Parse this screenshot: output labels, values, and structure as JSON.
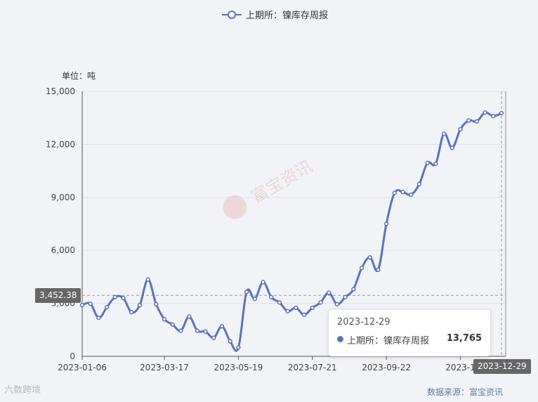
{
  "legend": {
    "label": "上期所：镍库存周报",
    "color": "#5b73bd"
  },
  "unit_label": "单位：吨",
  "tooltip": {
    "date": "2023-12-29",
    "series_name": "上期所：镍库存周报",
    "value": "13,765"
  },
  "crosshair": {
    "y_label": "3,452.38",
    "x_label": "2023-12-29",
    "y_value": 3452.38
  },
  "watermark": {
    "text": "富宝资讯"
  },
  "footer": {
    "source": "数据来源：富宝资讯",
    "brand": "六数跨境"
  },
  "chart_data": {
    "type": "line",
    "ylim": [
      0,
      15000
    ],
    "y_ticks": [
      0,
      3000,
      6000,
      9000,
      12000,
      15000
    ],
    "y_tick_labels": [
      "0",
      "3,000",
      "6,000",
      "9,000",
      "12,000",
      "15,000"
    ],
    "x_tick_labels": [
      "2023-01-06",
      "2023-03-17",
      "2023-05-19",
      "2023-07-21",
      "2023-09-22",
      "2023-1"
    ],
    "x_tick_index": [
      0,
      10,
      19,
      28,
      37,
      46
    ],
    "series": [
      {
        "name": "上期所：镍库存周报",
        "color": "#5b73bd",
        "x": [
          "2023-01-06",
          "2023-01-13",
          "2023-01-20",
          "2023-01-27",
          "2023-02-03",
          "2023-02-10",
          "2023-02-17",
          "2023-02-24",
          "2023-03-03",
          "2023-03-10",
          "2023-03-17",
          "2023-03-24",
          "2023-03-31",
          "2023-04-07",
          "2023-04-14",
          "2023-04-21",
          "2023-04-28",
          "2023-05-05",
          "2023-05-12",
          "2023-05-19",
          "2023-05-26",
          "2023-06-02",
          "2023-06-09",
          "2023-06-16",
          "2023-06-23",
          "2023-06-30",
          "2023-07-07",
          "2023-07-14",
          "2023-07-21",
          "2023-07-28",
          "2023-08-04",
          "2023-08-11",
          "2023-08-18",
          "2023-08-25",
          "2023-09-01",
          "2023-09-08",
          "2023-09-15",
          "2023-09-22",
          "2023-09-29",
          "2023-10-06",
          "2023-10-13",
          "2023-10-20",
          "2023-10-27",
          "2023-11-03",
          "2023-11-10",
          "2023-11-17",
          "2023-11-24",
          "2023-12-01",
          "2023-12-08",
          "2023-12-15",
          "2023-12-22",
          "2023-12-29"
        ],
        "values": [
          2900,
          2980,
          2180,
          2780,
          3350,
          3300,
          2500,
          2900,
          4350,
          2950,
          2100,
          1800,
          1450,
          2250,
          1450,
          1400,
          1050,
          1700,
          850,
          500,
          3650,
          3250,
          4200,
          3350,
          3050,
          2550,
          2750,
          2350,
          2750,
          3050,
          3600,
          2950,
          3350,
          3800,
          5000,
          5600,
          4900,
          7500,
          9250,
          9300,
          9150,
          9750,
          10950,
          10900,
          12600,
          11800,
          12850,
          13350,
          13300,
          13800,
          13600,
          13765
        ]
      }
    ]
  }
}
